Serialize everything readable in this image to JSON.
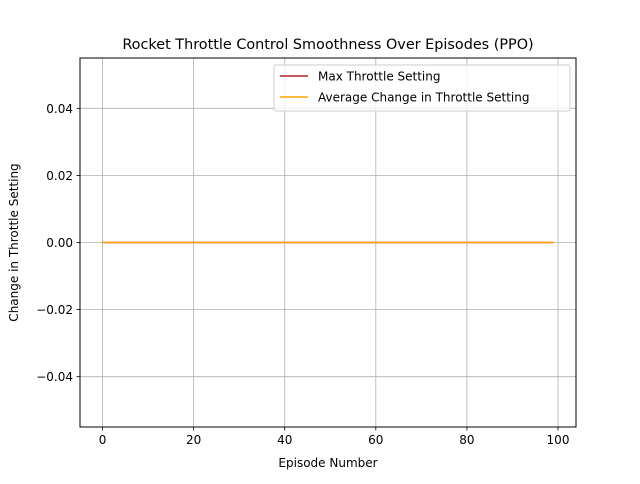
{
  "chart_data": {
    "type": "line",
    "title": "Rocket Throttle Control Smoothness Over Episodes (PPO)",
    "xlabel": "Episode Number",
    "ylabel": "Change in Throttle Setting",
    "xlim": [
      -4.95,
      103.95
    ],
    "ylim": [
      -0.055,
      0.055
    ],
    "xticks": [
      0,
      20,
      40,
      60,
      80,
      100
    ],
    "xtick_labels": [
      "0",
      "20",
      "40",
      "60",
      "80",
      "100"
    ],
    "yticks": [
      -0.04,
      -0.02,
      0.0,
      0.02,
      0.04
    ],
    "ytick_labels": [
      "−0.04",
      "−0.02",
      "0.00",
      "0.02",
      "0.04"
    ],
    "grid": true,
    "legend_position": "top-right",
    "x": [
      0,
      99
    ],
    "series": [
      {
        "name": "Max Throttle Setting",
        "color": "#b22222",
        "values": [
          0,
          0
        ]
      },
      {
        "name": "Average Change in Throttle Setting",
        "color": "#ffa500",
        "values": [
          0,
          0
        ]
      }
    ]
  }
}
